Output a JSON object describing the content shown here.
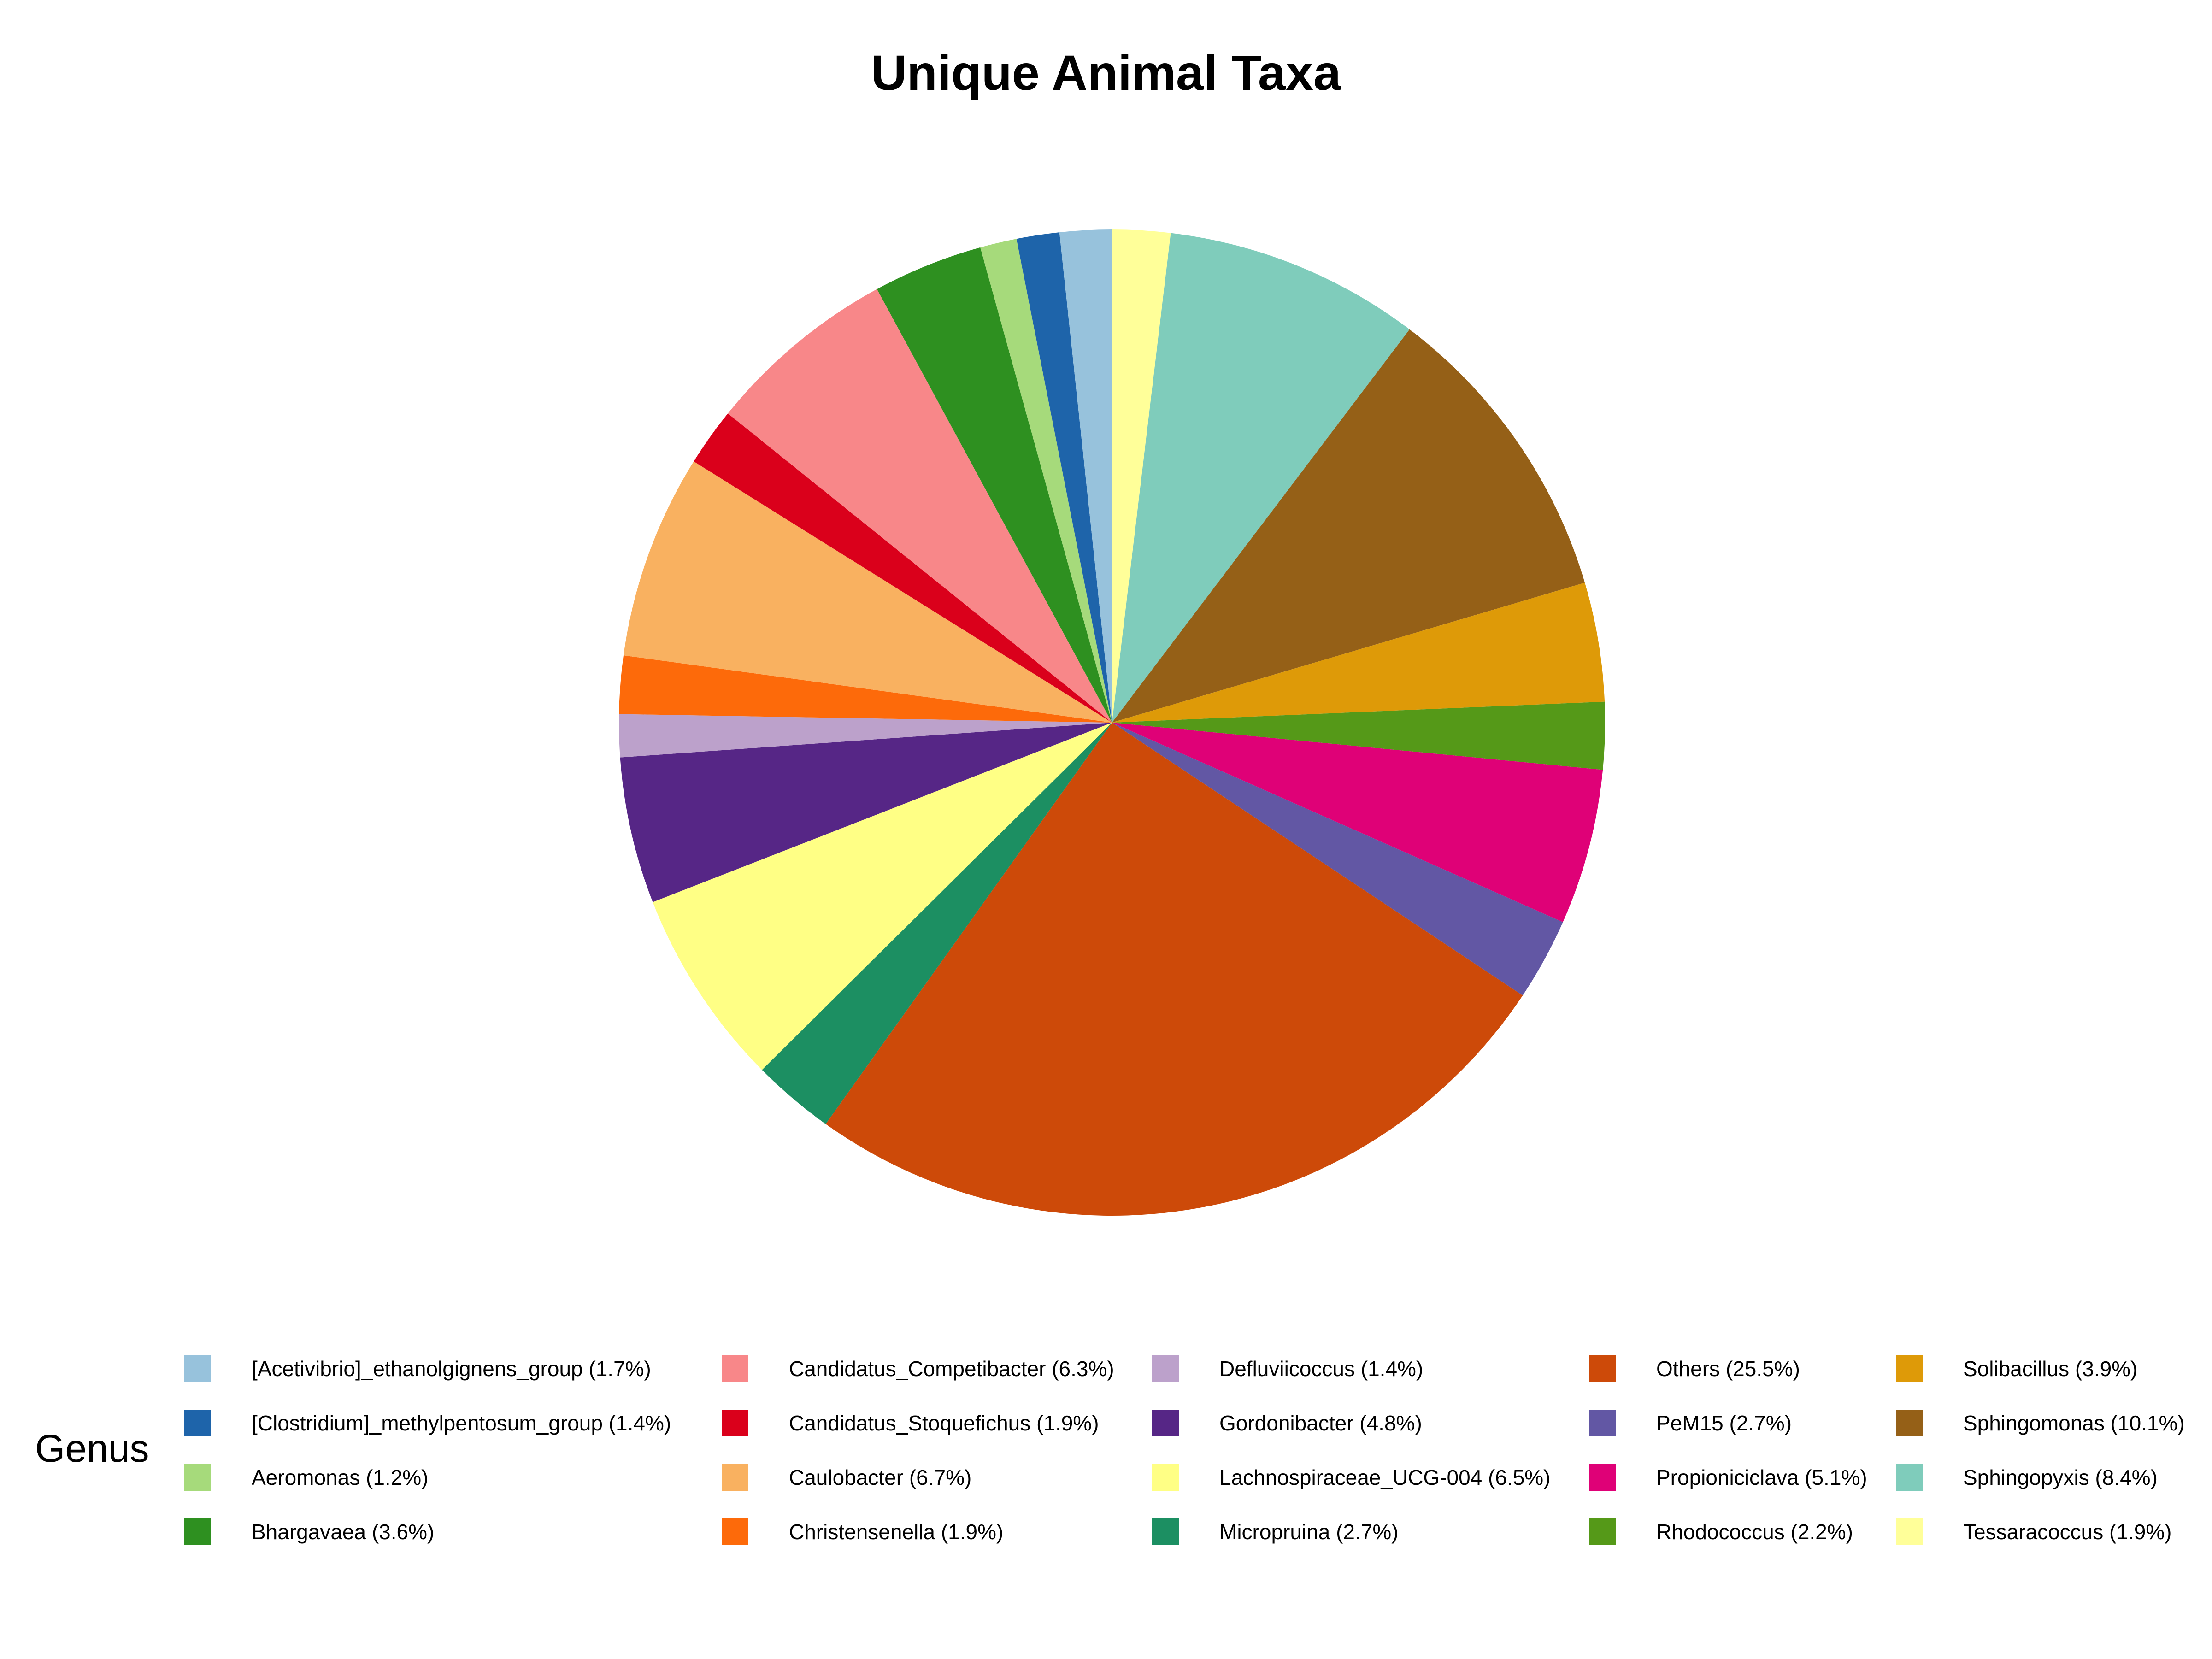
{
  "chart_data": {
    "type": "pie",
    "title": "Unique Animal Taxa",
    "legend_title": "Genus",
    "legend_position": "bottom",
    "start": "12 o'clock, clockwise",
    "slices": [
      {
        "label": "Tessaracoccus (1.9%)",
        "name": "Tessaracoccus",
        "value": 1.9,
        "color": "#FFFF99"
      },
      {
        "label": "Sphingopyxis (8.4%)",
        "name": "Sphingopyxis",
        "value": 8.4,
        "color": "#7FCCBB"
      },
      {
        "label": "Sphingomonas (10.1%)",
        "name": "Sphingomonas",
        "value": 10.1,
        "color": "#956017"
      },
      {
        "label": "Solibacillus (3.9%)",
        "name": "Solibacillus",
        "value": 3.9,
        "color": "#DE9A08"
      },
      {
        "label": "Rhodococcus (2.2%)",
        "name": "Rhodococcus",
        "value": 2.2,
        "color": "#559918"
      },
      {
        "label": "Propioniciclava (5.1%)",
        "name": "Propioniciclava",
        "value": 5.1,
        "color": "#DF0177"
      },
      {
        "label": "PeM15 (2.7%)",
        "name": "PeM15",
        "value": 2.7,
        "color": "#6257A4"
      },
      {
        "label": "Others (25.5%)",
        "name": "Others",
        "value": 25.5,
        "color": "#CD4A09"
      },
      {
        "label": "Micropruina (2.7%)",
        "name": "Micropruina",
        "value": 2.7,
        "color": "#1C8F62"
      },
      {
        "label": "Lachnospiraceae_UCG-004 (6.5%)",
        "name": "Lachnospiraceae_UCG-004",
        "value": 6.5,
        "color": "#FFFF85"
      },
      {
        "label": "Gordonibacter (4.8%)",
        "name": "Gordonibacter",
        "value": 4.8,
        "color": "#562686"
      },
      {
        "label": "Defluviicoccus (1.4%)",
        "name": "Defluviicoccus",
        "value": 1.4,
        "color": "#BCA1CB"
      },
      {
        "label": "Christensenella (1.9%)",
        "name": "Christensenella",
        "value": 1.9,
        "color": "#FD6A0A"
      },
      {
        "label": "Caulobacter (6.7%)",
        "name": "Caulobacter",
        "value": 6.7,
        "color": "#F9B160"
      },
      {
        "label": "Candidatus_Stoquefichus (1.9%)",
        "name": "Candidatus_Stoquefichus",
        "value": 1.9,
        "color": "#DA001B"
      },
      {
        "label": "Candidatus_Competibacter (6.3%)",
        "name": "Candidatus_Competibacter",
        "value": 6.3,
        "color": "#F88789"
      },
      {
        "label": "Bhargavaea (3.6%)",
        "name": "Bhargavaea",
        "value": 3.6,
        "color": "#2E9020"
      },
      {
        "label": "Aeromonas (1.2%)",
        "name": "Aeromonas",
        "value": 1.2,
        "color": "#A6DA7B"
      },
      {
        "label": "[Clostridium]_methylpentosum_group (1.4%)",
        "name": "[Clostridium]_methylpentosum_group",
        "value": 1.4,
        "color": "#1E64AA"
      },
      {
        "label": "[Acetivibrio]_ethanolgignens_group (1.7%)",
        "name": "[Acetivibrio]_ethanolgignens_group",
        "value": 1.7,
        "color": "#97C2DC"
      }
    ],
    "legend_columns": [
      [
        "[Acetivibrio]_ethanolgignens_group",
        "[Clostridium]_methylpentosum_group",
        "Aeromonas",
        "Bhargavaea"
      ],
      [
        "Candidatus_Competibacter",
        "Candidatus_Stoquefichus",
        "Caulobacter",
        "Christensenella"
      ],
      [
        "Defluviicoccus",
        "Gordonibacter",
        "Lachnospiraceae_UCG-004",
        "Micropruina"
      ],
      [
        "Others",
        "PeM15",
        "Propioniciclava",
        "Rhodococcus"
      ],
      [
        "Solibacillus",
        "Sphingomonas",
        "Sphingopyxis",
        "Tessaracoccus"
      ]
    ]
  }
}
